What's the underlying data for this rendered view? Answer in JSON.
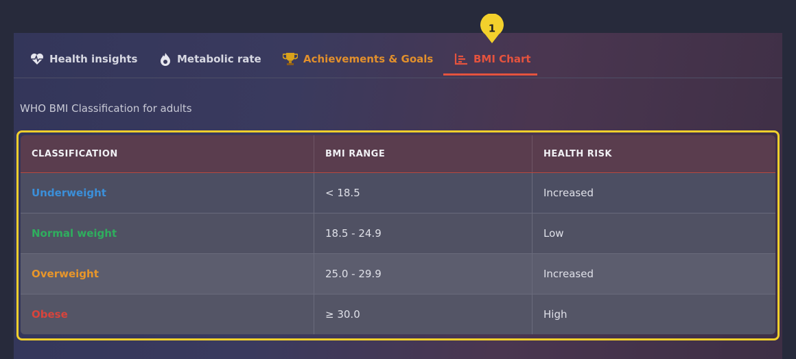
{
  "tabs": [
    {
      "label": "Health insights"
    },
    {
      "label": "Metabolic rate"
    },
    {
      "label": "Achievements & Goals"
    },
    {
      "label": "BMI Chart"
    }
  ],
  "marker": "1",
  "subtitle": "WHO BMI Classification for adults",
  "table": {
    "headers": [
      "CLASSIFICATION",
      "BMI RANGE",
      "HEALTH RISK"
    ],
    "rows": [
      [
        "Underweight",
        "< 18.5",
        "Increased"
      ],
      [
        "Normal weight",
        "18.5 - 24.9",
        "Low"
      ],
      [
        "Overweight",
        "25.0 - 29.9",
        "Increased"
      ],
      [
        "Obese",
        "≥ 30.0",
        "High"
      ]
    ]
  }
}
